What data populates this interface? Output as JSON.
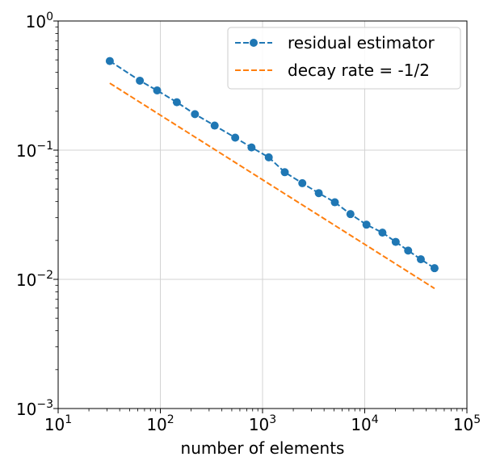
{
  "chart_data": {
    "type": "line",
    "title": "",
    "xlabel": "number of elements",
    "ylabel": "",
    "xscale": "log",
    "yscale": "log",
    "xlim": [
      10,
      100000
    ],
    "ylim": [
      0.001,
      1
    ],
    "grid": true,
    "legend_position": "top-right",
    "x_ticks": [
      {
        "base": "10",
        "exp": "1",
        "value": 10
      },
      {
        "base": "10",
        "exp": "2",
        "value": 100
      },
      {
        "base": "10",
        "exp": "3",
        "value": 1000
      },
      {
        "base": "10",
        "exp": "4",
        "value": 10000
      },
      {
        "base": "10",
        "exp": "5",
        "value": 100000
      }
    ],
    "y_ticks": [
      {
        "base": "10",
        "exp": "−3",
        "value": 0.001
      },
      {
        "base": "10",
        "exp": "−2",
        "value": 0.01
      },
      {
        "base": "10",
        "exp": "−1",
        "value": 0.1
      },
      {
        "base": "10",
        "exp": "0",
        "value": 1
      }
    ],
    "series": [
      {
        "name": "residual estimator",
        "color": "#1f77b4",
        "style": "dashed-marker",
        "x": [
          32,
          63,
          93,
          145,
          218,
          340,
          540,
          780,
          1150,
          1650,
          2450,
          3550,
          5100,
          7250,
          10400,
          14900,
          20100,
          26600,
          35400,
          48200
        ],
        "y": [
          0.49,
          0.345,
          0.29,
          0.235,
          0.19,
          0.155,
          0.125,
          0.105,
          0.088,
          0.0675,
          0.0555,
          0.0465,
          0.0395,
          0.032,
          0.0265,
          0.023,
          0.0195,
          0.0167,
          0.0143,
          0.0122
        ]
      },
      {
        "name": "decay rate = -1/2",
        "color": "#ff7f0e",
        "style": "dashed",
        "x": [
          32,
          48200
        ],
        "y": [
          0.33,
          0.0085
        ]
      }
    ]
  }
}
